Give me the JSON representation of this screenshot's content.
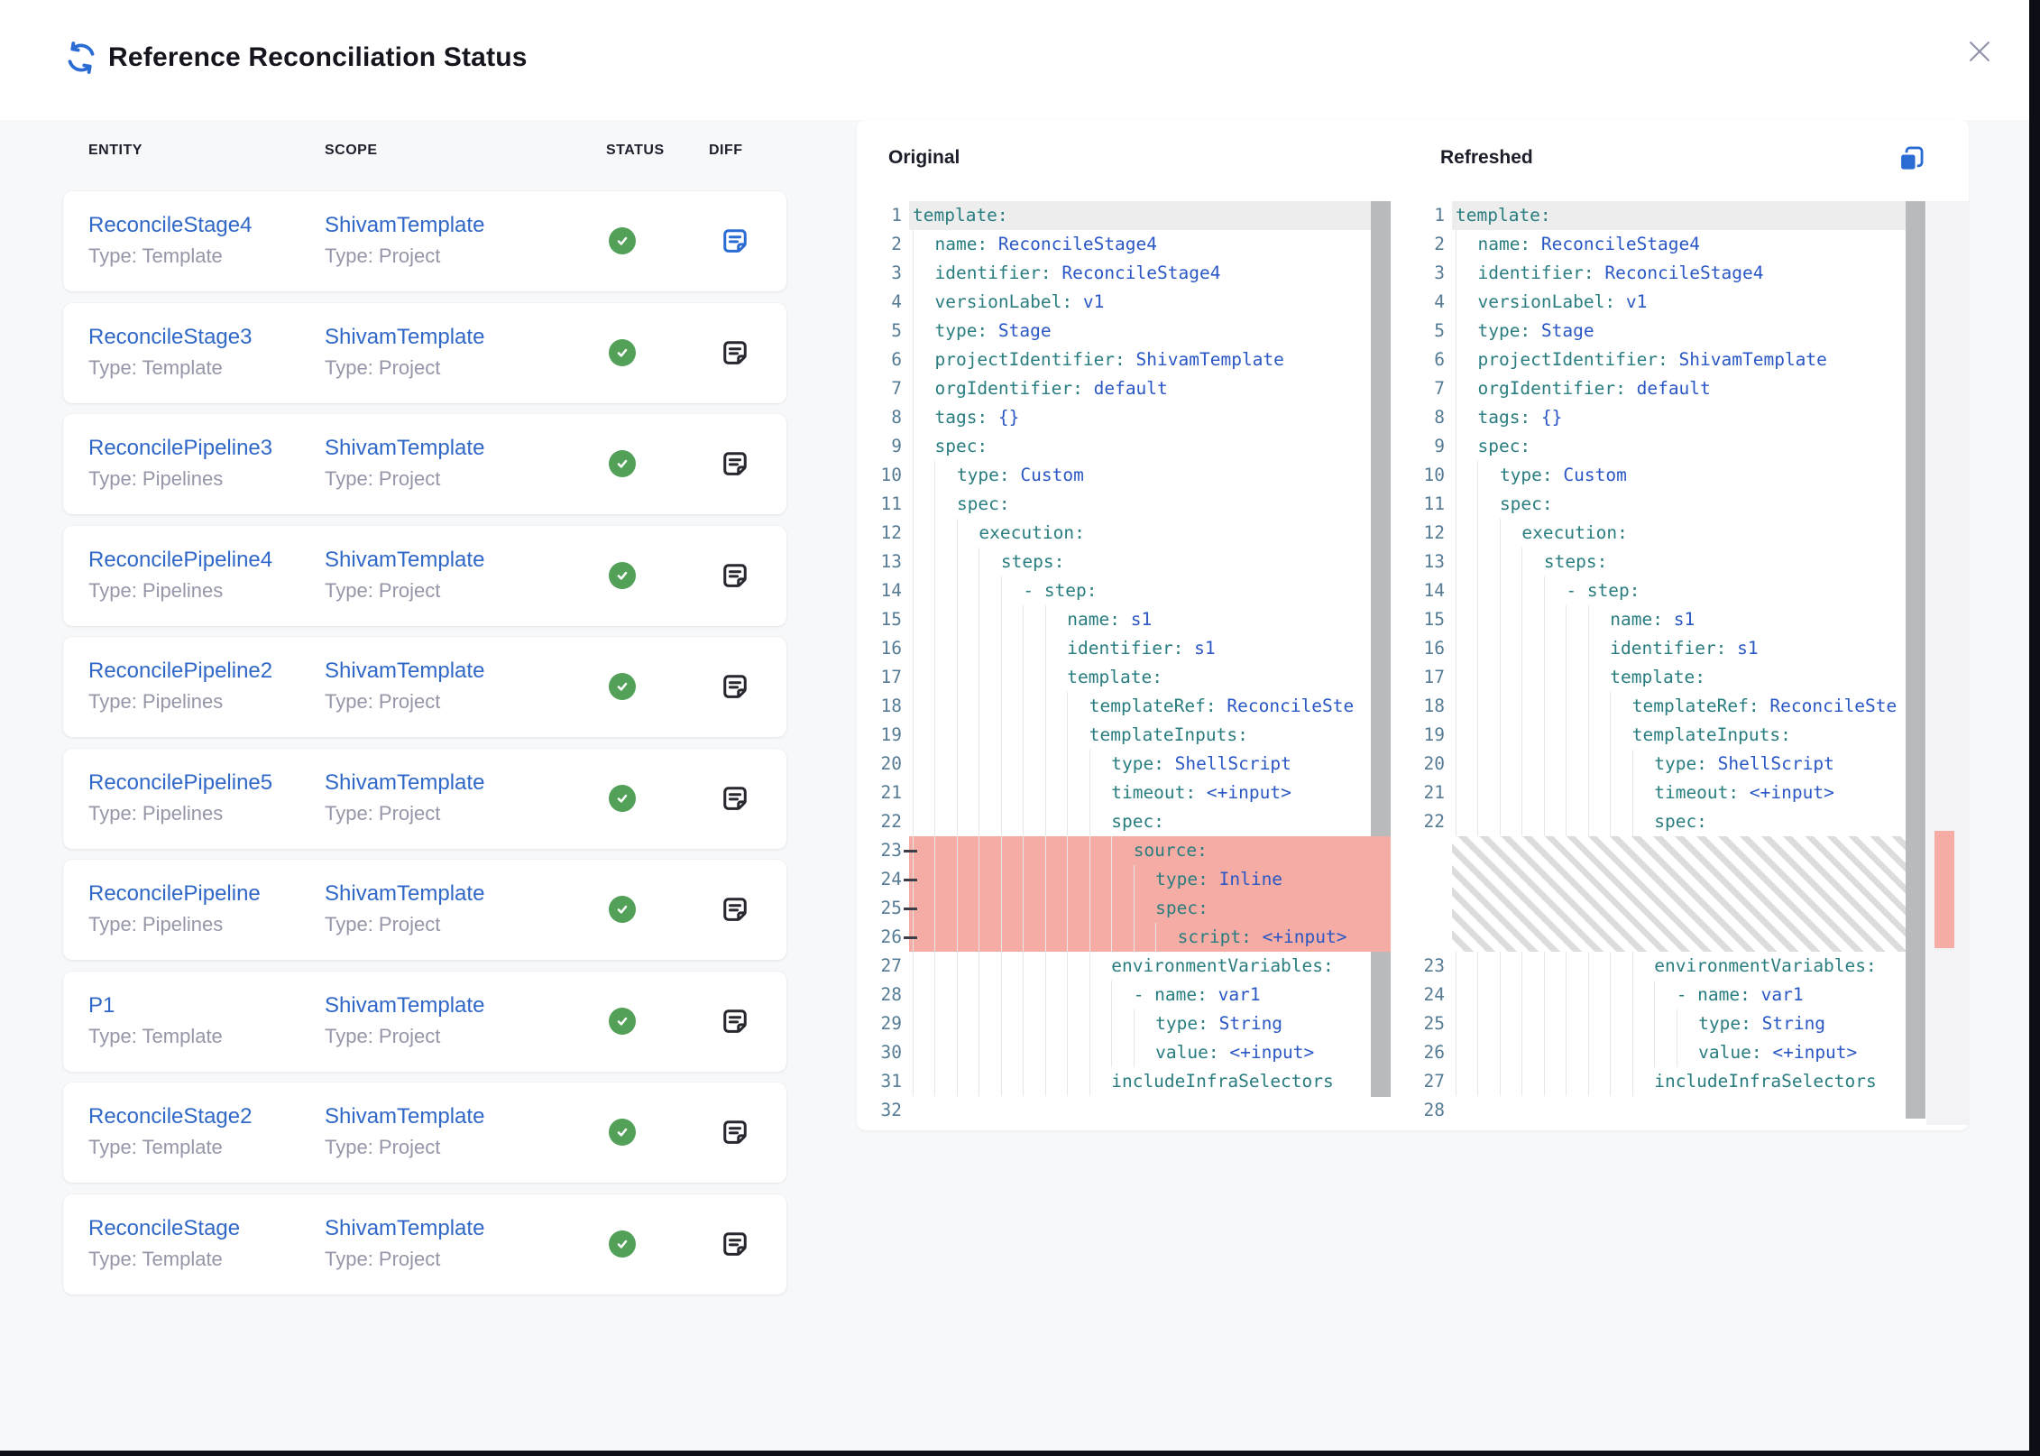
{
  "header": {
    "title": "Reference Reconciliation Status"
  },
  "colors": {
    "accent_blue": "#2b6cd4",
    "link_blue": "#3068c8",
    "success_green": "#53a158",
    "removed_red": "#f5aca4",
    "key_teal": "#2a7d7f",
    "value_blue": "#2b57c5",
    "line_number_blue": "#567c95",
    "muted_gray": "#9597a8",
    "hatch_gray": "#dcdcdc"
  },
  "icons": {
    "header": "sync-icon",
    "close": "close-icon",
    "status": "check-circle-icon",
    "diff": "note-icon",
    "copy": "copy-icon"
  },
  "table": {
    "columns": [
      "ENTITY",
      "SCOPE",
      "STATUS",
      "DIFF"
    ],
    "rows": [
      {
        "entity": "ReconcileStage4",
        "entity_type": "Type: Template",
        "scope": "ShivamTemplate",
        "scope_type": "Type: Project",
        "status": "success",
        "diff_active": true
      },
      {
        "entity": "ReconcileStage3",
        "entity_type": "Type: Template",
        "scope": "ShivamTemplate",
        "scope_type": "Type: Project",
        "status": "success",
        "diff_active": false
      },
      {
        "entity": "ReconcilePipeline3",
        "entity_type": "Type: Pipelines",
        "scope": "ShivamTemplate",
        "scope_type": "Type: Project",
        "status": "success",
        "diff_active": false
      },
      {
        "entity": "ReconcilePipeline4",
        "entity_type": "Type: Pipelines",
        "scope": "ShivamTemplate",
        "scope_type": "Type: Project",
        "status": "success",
        "diff_active": false
      },
      {
        "entity": "ReconcilePipeline2",
        "entity_type": "Type: Pipelines",
        "scope": "ShivamTemplate",
        "scope_type": "Type: Project",
        "status": "success",
        "diff_active": false
      },
      {
        "entity": "ReconcilePipeline5",
        "entity_type": "Type: Pipelines",
        "scope": "ShivamTemplate",
        "scope_type": "Type: Project",
        "status": "success",
        "diff_active": false
      },
      {
        "entity": "ReconcilePipeline",
        "entity_type": "Type: Pipelines",
        "scope": "ShivamTemplate",
        "scope_type": "Type: Project",
        "status": "success",
        "diff_active": false
      },
      {
        "entity": "P1",
        "entity_type": "Type: Template",
        "scope": "ShivamTemplate",
        "scope_type": "Type: Project",
        "status": "success",
        "diff_active": false
      },
      {
        "entity": "ReconcileStage2",
        "entity_type": "Type: Template",
        "scope": "ShivamTemplate",
        "scope_type": "Type: Project",
        "status": "success",
        "diff_active": false
      },
      {
        "entity": "ReconcileStage",
        "entity_type": "Type: Template",
        "scope": "ShivamTemplate",
        "scope_type": "Type: Project",
        "status": "success",
        "diff_active": false
      }
    ]
  },
  "diff": {
    "original_title": "Original",
    "refreshed_title": "Refreshed",
    "original_lines": [
      {
        "n": 1,
        "i": 0,
        "k": "template",
        "hl": true
      },
      {
        "n": 2,
        "i": 2,
        "k": "name",
        "v": "ReconcileStage4"
      },
      {
        "n": 3,
        "i": 2,
        "k": "identifier",
        "v": "ReconcileStage4"
      },
      {
        "n": 4,
        "i": 2,
        "k": "versionLabel",
        "v": "v1"
      },
      {
        "n": 5,
        "i": 2,
        "k": "type",
        "v": "Stage"
      },
      {
        "n": 6,
        "i": 2,
        "k": "projectIdentifier",
        "v": "ShivamTemplate"
      },
      {
        "n": 7,
        "i": 2,
        "k": "orgIdentifier",
        "v": "default"
      },
      {
        "n": 8,
        "i": 2,
        "k": "tags",
        "v": "{}"
      },
      {
        "n": 9,
        "i": 2,
        "k": "spec"
      },
      {
        "n": 10,
        "i": 4,
        "k": "type",
        "v": "Custom"
      },
      {
        "n": 11,
        "i": 4,
        "k": "spec"
      },
      {
        "n": 12,
        "i": 6,
        "k": "execution"
      },
      {
        "n": 13,
        "i": 8,
        "k": "steps"
      },
      {
        "n": 14,
        "i": 10,
        "dash": true,
        "k": "step"
      },
      {
        "n": 15,
        "i": 14,
        "k": "name",
        "v": "s1"
      },
      {
        "n": 16,
        "i": 14,
        "k": "identifier",
        "v": "s1"
      },
      {
        "n": 17,
        "i": 14,
        "k": "template"
      },
      {
        "n": 18,
        "i": 16,
        "k": "templateRef",
        "v": "ReconcileSte"
      },
      {
        "n": 19,
        "i": 16,
        "k": "templateInputs"
      },
      {
        "n": 20,
        "i": 18,
        "k": "type",
        "v": "ShellScript"
      },
      {
        "n": 21,
        "i": 18,
        "k": "timeout",
        "v": "<+input>"
      },
      {
        "n": 22,
        "i": 18,
        "k": "spec"
      },
      {
        "n": 23,
        "i": 20,
        "k": "source",
        "del": true
      },
      {
        "n": 24,
        "i": 22,
        "k": "type",
        "v": "Inline",
        "del": true
      },
      {
        "n": 25,
        "i": 22,
        "k": "spec",
        "del": true
      },
      {
        "n": 26,
        "i": 24,
        "k": "script",
        "v": "<+input>",
        "del": true
      },
      {
        "n": 27,
        "i": 18,
        "k": "environmentVariables"
      },
      {
        "n": 28,
        "i": 20,
        "dash": true,
        "k": "name",
        "v": "var1"
      },
      {
        "n": 29,
        "i": 22,
        "k": "type",
        "v": "String"
      },
      {
        "n": 30,
        "i": 22,
        "k": "value",
        "v": "<+input>"
      },
      {
        "n": 31,
        "i": 18,
        "k": "includeInfraSelectors",
        "nc": true
      },
      {
        "n": 32,
        "i": 0
      }
    ],
    "refreshed_lines": [
      {
        "n": 1,
        "i": 0,
        "k": "template",
        "hl": true
      },
      {
        "n": 2,
        "i": 2,
        "k": "name",
        "v": "ReconcileStage4"
      },
      {
        "n": 3,
        "i": 2,
        "k": "identifier",
        "v": "ReconcileStage4"
      },
      {
        "n": 4,
        "i": 2,
        "k": "versionLabel",
        "v": "v1"
      },
      {
        "n": 5,
        "i": 2,
        "k": "type",
        "v": "Stage"
      },
      {
        "n": 6,
        "i": 2,
        "k": "projectIdentifier",
        "v": "ShivamTemplate"
      },
      {
        "n": 7,
        "i": 2,
        "k": "orgIdentifier",
        "v": "default"
      },
      {
        "n": 8,
        "i": 2,
        "k": "tags",
        "v": "{}"
      },
      {
        "n": 9,
        "i": 2,
        "k": "spec"
      },
      {
        "n": 10,
        "i": 4,
        "k": "type",
        "v": "Custom"
      },
      {
        "n": 11,
        "i": 4,
        "k": "spec"
      },
      {
        "n": 12,
        "i": 6,
        "k": "execution"
      },
      {
        "n": 13,
        "i": 8,
        "k": "steps"
      },
      {
        "n": 14,
        "i": 10,
        "dash": true,
        "k": "step"
      },
      {
        "n": 15,
        "i": 14,
        "k": "name",
        "v": "s1"
      },
      {
        "n": 16,
        "i": 14,
        "k": "identifier",
        "v": "s1"
      },
      {
        "n": 17,
        "i": 14,
        "k": "template"
      },
      {
        "n": 18,
        "i": 16,
        "k": "templateRef",
        "v": "ReconcileSte"
      },
      {
        "n": 19,
        "i": 16,
        "k": "templateInputs"
      },
      {
        "n": 20,
        "i": 18,
        "k": "type",
        "v": "ShellScript"
      },
      {
        "n": 21,
        "i": 18,
        "k": "timeout",
        "v": "<+input>"
      },
      {
        "n": 22,
        "i": 18,
        "k": "spec"
      },
      {
        "hatch": true,
        "rows": 4
      },
      {
        "n": 23,
        "i": 18,
        "k": "environmentVariables"
      },
      {
        "n": 24,
        "i": 20,
        "dash": true,
        "k": "name",
        "v": "var1"
      },
      {
        "n": 25,
        "i": 22,
        "k": "type",
        "v": "String"
      },
      {
        "n": 26,
        "i": 22,
        "k": "value",
        "v": "<+input>"
      },
      {
        "n": 27,
        "i": 18,
        "k": "includeInfraSelectors",
        "nc": true
      },
      {
        "n": 28,
        "i": 0
      }
    ]
  }
}
